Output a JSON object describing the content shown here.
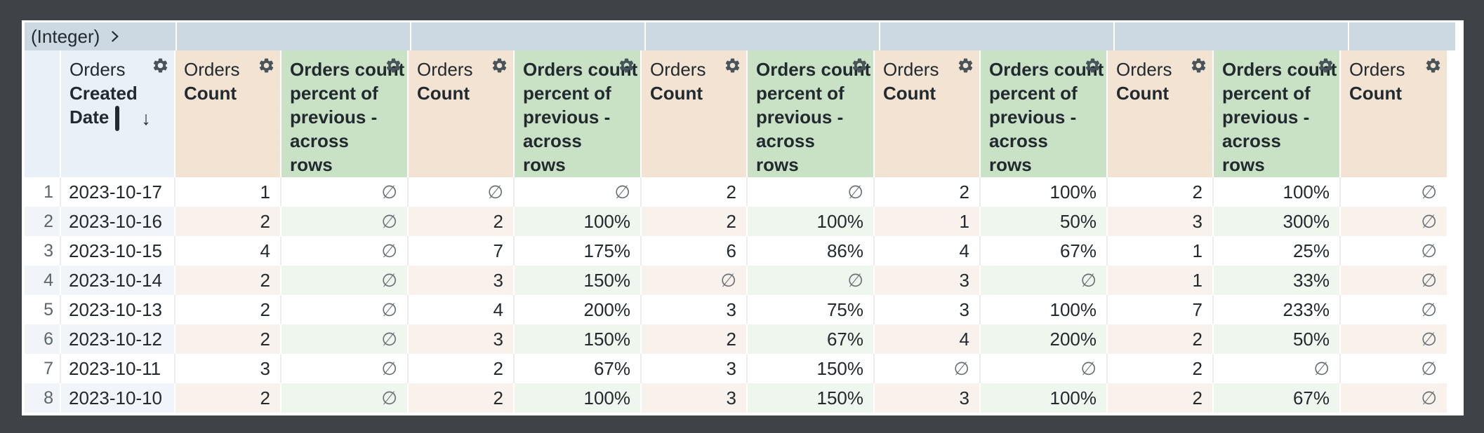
{
  "pivot_header": {
    "label": "(Integer)",
    "expand_icon": "chevron-right-icon",
    "sections_total": 7
  },
  "column_headers": {
    "dimension": {
      "view_name": "Orders",
      "field_lines": [
        "Created",
        "Date"
      ],
      "sort_direction_icon": "arrow-down",
      "sort_arrow": "↓"
    },
    "count_measure": {
      "view_name": "Orders",
      "field_name": "Count"
    },
    "percent_measure": {
      "full_label": "Orders count percent of previous - across rows",
      "lines": [
        "Orders count",
        "percent of",
        "previous -",
        "across",
        "rows"
      ]
    }
  },
  "pivot_groups_count": 5,
  "trailing_count_column": true,
  "null_symbol": "∅",
  "table_rows": [
    {
      "row_number": "1",
      "date": "2023-10-17",
      "values": [
        "1",
        "∅",
        "∅",
        "∅",
        "2",
        "∅",
        "2",
        "100%",
        "2",
        "100%",
        "∅"
      ]
    },
    {
      "row_number": "2",
      "date": "2023-10-16",
      "values": [
        "2",
        "∅",
        "2",
        "100%",
        "2",
        "100%",
        "1",
        "50%",
        "3",
        "300%",
        "∅"
      ]
    },
    {
      "row_number": "3",
      "date": "2023-10-15",
      "values": [
        "4",
        "∅",
        "7",
        "175%",
        "6",
        "86%",
        "4",
        "67%",
        "1",
        "25%",
        "∅"
      ]
    },
    {
      "row_number": "4",
      "date": "2023-10-14",
      "values": [
        "2",
        "∅",
        "3",
        "150%",
        "∅",
        "∅",
        "3",
        "∅",
        "1",
        "33%",
        "∅"
      ]
    },
    {
      "row_number": "5",
      "date": "2023-10-13",
      "values": [
        "2",
        "∅",
        "4",
        "200%",
        "3",
        "75%",
        "3",
        "100%",
        "7",
        "233%",
        "∅"
      ]
    },
    {
      "row_number": "6",
      "date": "2023-10-12",
      "values": [
        "2",
        "∅",
        "3",
        "150%",
        "2",
        "67%",
        "4",
        "200%",
        "2",
        "50%",
        "∅"
      ]
    },
    {
      "row_number": "7",
      "date": "2023-10-11",
      "values": [
        "3",
        "∅",
        "2",
        "67%",
        "3",
        "150%",
        "∅",
        "∅",
        "2",
        "∅",
        "∅"
      ]
    },
    {
      "row_number": "8",
      "date": "2023-10-10",
      "values": [
        "2",
        "∅",
        "2",
        "100%",
        "3",
        "150%",
        "3",
        "100%",
        "2",
        "67%",
        "∅"
      ]
    }
  ],
  "colors": {
    "window_background": "#3f4347",
    "pivot_band_bg": "#cdd9e2",
    "dimension_header_bg": "#e9f0f6",
    "count_header_bg": "#f2e3d3",
    "percent_header_bg": "#c9e1c4",
    "even_row_dimension_bg": "#f1f5f9",
    "even_row_count_bg": "#f9f2ec",
    "even_row_percent_bg": "#eff6ee",
    "text": "#222a30",
    "row_number_text": "#5c666e",
    "null_text": "#687077"
  }
}
